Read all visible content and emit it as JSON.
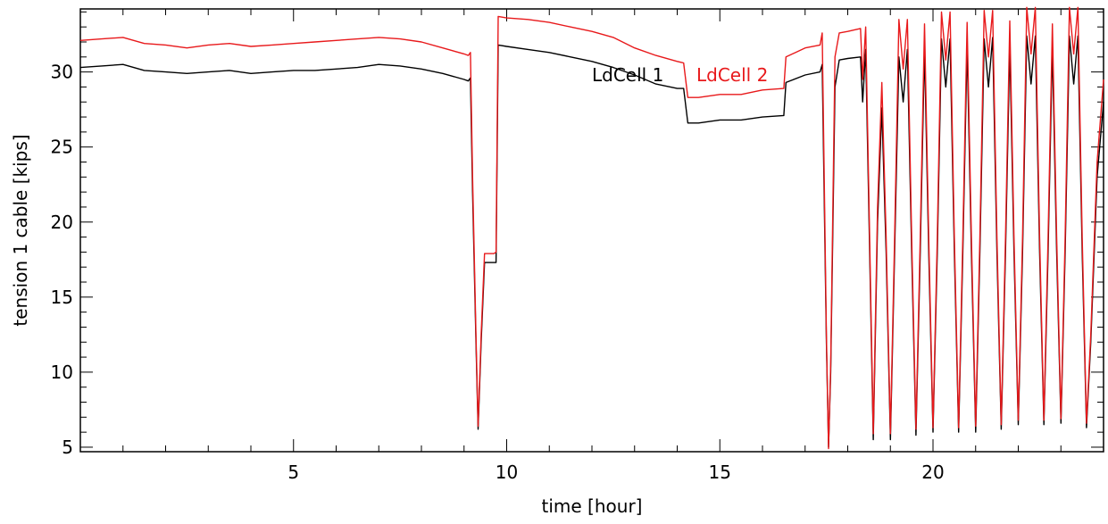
{
  "chart_data": {
    "type": "line",
    "title": "",
    "xlabel": "time [hour]",
    "ylabel": "tension 1 cable [kips]",
    "xlim": [
      0,
      24
    ],
    "ylim": [
      4.7,
      34.2
    ],
    "grid": false,
    "legend_position": "top-center",
    "x_ticks": [
      5,
      10,
      15,
      20
    ],
    "y_ticks": [
      5,
      10,
      15,
      20,
      25,
      30
    ],
    "series": [
      {
        "name": "LdCell 1",
        "color": "#000000",
        "points": [
          [
            0.0,
            30.3
          ],
          [
            0.5,
            30.4
          ],
          [
            1.0,
            30.5
          ],
          [
            1.5,
            30.1
          ],
          [
            2.0,
            30.0
          ],
          [
            2.5,
            29.9
          ],
          [
            3.0,
            30.0
          ],
          [
            3.5,
            30.1
          ],
          [
            4.0,
            29.9
          ],
          [
            4.5,
            30.0
          ],
          [
            5.0,
            30.1
          ],
          [
            5.5,
            30.1
          ],
          [
            6.0,
            30.2
          ],
          [
            6.5,
            30.3
          ],
          [
            7.0,
            30.5
          ],
          [
            7.5,
            30.4
          ],
          [
            8.0,
            30.2
          ],
          [
            8.5,
            29.9
          ],
          [
            9.0,
            29.5
          ],
          [
            9.1,
            29.4
          ],
          [
            9.15,
            29.6
          ],
          [
            9.2,
            22.0
          ],
          [
            9.28,
            12.0
          ],
          [
            9.33,
            6.2
          ],
          [
            9.4,
            12.0
          ],
          [
            9.48,
            17.3
          ],
          [
            9.7,
            17.3
          ],
          [
            9.75,
            17.3
          ],
          [
            9.8,
            31.8
          ],
          [
            10.0,
            31.7
          ],
          [
            10.5,
            31.5
          ],
          [
            11.0,
            31.3
          ],
          [
            11.5,
            31.0
          ],
          [
            12.0,
            30.7
          ],
          [
            12.5,
            30.3
          ],
          [
            13.0,
            29.8
          ],
          [
            13.5,
            29.2
          ],
          [
            14.0,
            28.9
          ],
          [
            14.15,
            28.9
          ],
          [
            14.25,
            26.6
          ],
          [
            14.5,
            26.6
          ],
          [
            15.0,
            26.8
          ],
          [
            15.5,
            26.8
          ],
          [
            16.0,
            27.0
          ],
          [
            16.5,
            27.1
          ],
          [
            16.55,
            29.3
          ],
          [
            17.0,
            29.8
          ],
          [
            17.35,
            30.0
          ],
          [
            17.4,
            30.5
          ],
          [
            17.5,
            12.0
          ],
          [
            17.55,
            5.0
          ],
          [
            17.6,
            10.0
          ],
          [
            17.7,
            29.0
          ],
          [
            17.8,
            30.8
          ],
          [
            18.0,
            30.9
          ],
          [
            18.3,
            31.0
          ],
          [
            18.35,
            28.0
          ],
          [
            18.42,
            31.5
          ],
          [
            18.5,
            20.0
          ],
          [
            18.6,
            5.5
          ],
          [
            18.7,
            20.0
          ],
          [
            18.8,
            27.6
          ],
          [
            18.9,
            18.0
          ],
          [
            19.0,
            5.5
          ],
          [
            19.1,
            18.0
          ],
          [
            19.2,
            31.0
          ],
          [
            19.3,
            28.0
          ],
          [
            19.4,
            31.5
          ],
          [
            19.5,
            18.0
          ],
          [
            19.6,
            5.8
          ],
          [
            19.7,
            18.0
          ],
          [
            19.8,
            31.6
          ],
          [
            19.9,
            18.0
          ],
          [
            20.0,
            6.0
          ],
          [
            20.1,
            18.0
          ],
          [
            20.2,
            32.2
          ],
          [
            20.3,
            29.0
          ],
          [
            20.4,
            32.2
          ],
          [
            20.5,
            18.0
          ],
          [
            20.6,
            6.0
          ],
          [
            20.7,
            18.0
          ],
          [
            20.8,
            31.8
          ],
          [
            20.9,
            18.0
          ],
          [
            21.0,
            6.0
          ],
          [
            21.1,
            18.0
          ],
          [
            21.2,
            32.2
          ],
          [
            21.3,
            29.0
          ],
          [
            21.4,
            32.3
          ],
          [
            21.5,
            18.0
          ],
          [
            21.6,
            6.2
          ],
          [
            21.7,
            18.0
          ],
          [
            21.8,
            31.8
          ],
          [
            21.9,
            18.0
          ],
          [
            22.0,
            6.5
          ],
          [
            22.1,
            18.0
          ],
          [
            22.2,
            32.4
          ],
          [
            22.3,
            29.2
          ],
          [
            22.4,
            32.4
          ],
          [
            22.5,
            18.0
          ],
          [
            22.6,
            6.5
          ],
          [
            22.7,
            18.0
          ],
          [
            22.8,
            31.7
          ],
          [
            22.9,
            18.0
          ],
          [
            23.0,
            6.6
          ],
          [
            23.1,
            18.0
          ],
          [
            23.2,
            32.4
          ],
          [
            23.3,
            29.2
          ],
          [
            23.4,
            32.4
          ],
          [
            23.5,
            18.0
          ],
          [
            23.6,
            6.3
          ],
          [
            23.7,
            12.0
          ],
          [
            23.85,
            23.0
          ],
          [
            24.0,
            28.0
          ]
        ]
      },
      {
        "name": "LdCell 2",
        "color": "#e8191b",
        "points": [
          [
            0.0,
            32.1
          ],
          [
            0.5,
            32.2
          ],
          [
            1.0,
            32.3
          ],
          [
            1.5,
            31.9
          ],
          [
            2.0,
            31.8
          ],
          [
            2.5,
            31.6
          ],
          [
            3.0,
            31.8
          ],
          [
            3.5,
            31.9
          ],
          [
            4.0,
            31.7
          ],
          [
            4.5,
            31.8
          ],
          [
            5.0,
            31.9
          ],
          [
            5.5,
            32.0
          ],
          [
            6.0,
            32.1
          ],
          [
            6.5,
            32.2
          ],
          [
            7.0,
            32.3
          ],
          [
            7.5,
            32.2
          ],
          [
            8.0,
            32.0
          ],
          [
            8.5,
            31.6
          ],
          [
            9.0,
            31.2
          ],
          [
            9.1,
            31.1
          ],
          [
            9.15,
            31.3
          ],
          [
            9.2,
            23.0
          ],
          [
            9.28,
            12.5
          ],
          [
            9.33,
            6.4
          ],
          [
            9.4,
            12.5
          ],
          [
            9.48,
            17.9
          ],
          [
            9.7,
            17.9
          ],
          [
            9.75,
            18.0
          ],
          [
            9.8,
            33.7
          ],
          [
            10.0,
            33.6
          ],
          [
            10.5,
            33.5
          ],
          [
            11.0,
            33.3
          ],
          [
            11.5,
            33.0
          ],
          [
            12.0,
            32.7
          ],
          [
            12.5,
            32.3
          ],
          [
            13.0,
            31.6
          ],
          [
            13.5,
            31.1
          ],
          [
            14.0,
            30.7
          ],
          [
            14.15,
            30.6
          ],
          [
            14.25,
            28.3
          ],
          [
            14.5,
            28.3
          ],
          [
            15.0,
            28.5
          ],
          [
            15.5,
            28.5
          ],
          [
            16.0,
            28.8
          ],
          [
            16.5,
            28.9
          ],
          [
            16.55,
            31.0
          ],
          [
            17.0,
            31.6
          ],
          [
            17.35,
            31.8
          ],
          [
            17.4,
            32.6
          ],
          [
            17.5,
            12.5
          ],
          [
            17.55,
            4.9
          ],
          [
            17.6,
            10.5
          ],
          [
            17.7,
            31.0
          ],
          [
            17.8,
            32.6
          ],
          [
            18.0,
            32.7
          ],
          [
            18.3,
            32.9
          ],
          [
            18.35,
            29.5
          ],
          [
            18.42,
            33.0
          ],
          [
            18.5,
            21.0
          ],
          [
            18.6,
            5.9
          ],
          [
            18.7,
            21.0
          ],
          [
            18.8,
            29.3
          ],
          [
            18.9,
            19.0
          ],
          [
            19.0,
            5.9
          ],
          [
            19.1,
            19.0
          ],
          [
            19.2,
            33.5
          ],
          [
            19.3,
            30.2
          ],
          [
            19.4,
            33.5
          ],
          [
            19.5,
            19.0
          ],
          [
            19.6,
            6.2
          ],
          [
            19.7,
            19.0
          ],
          [
            19.8,
            33.2
          ],
          [
            19.9,
            19.0
          ],
          [
            20.0,
            6.3
          ],
          [
            20.1,
            19.0
          ],
          [
            20.2,
            34.0
          ],
          [
            20.3,
            30.8
          ],
          [
            20.4,
            34.0
          ],
          [
            20.5,
            19.0
          ],
          [
            20.6,
            6.3
          ],
          [
            20.7,
            19.0
          ],
          [
            20.8,
            33.3
          ],
          [
            20.9,
            19.0
          ],
          [
            21.0,
            6.4
          ],
          [
            21.1,
            19.0
          ],
          [
            21.2,
            34.1
          ],
          [
            21.3,
            31.0
          ],
          [
            21.4,
            34.1
          ],
          [
            21.5,
            19.0
          ],
          [
            21.6,
            6.5
          ],
          [
            21.7,
            19.0
          ],
          [
            21.8,
            33.4
          ],
          [
            21.9,
            19.0
          ],
          [
            22.0,
            6.8
          ],
          [
            22.1,
            19.0
          ],
          [
            22.2,
            34.3
          ],
          [
            22.3,
            31.2
          ],
          [
            22.4,
            34.3
          ],
          [
            22.5,
            19.0
          ],
          [
            22.6,
            6.8
          ],
          [
            22.7,
            19.0
          ],
          [
            22.8,
            33.2
          ],
          [
            22.9,
            19.0
          ],
          [
            23.0,
            6.9
          ],
          [
            23.1,
            19.0
          ],
          [
            23.2,
            34.3
          ],
          [
            23.3,
            31.2
          ],
          [
            23.4,
            34.3
          ],
          [
            23.5,
            19.0
          ],
          [
            23.6,
            6.6
          ],
          [
            23.7,
            12.5
          ],
          [
            23.85,
            24.0
          ],
          [
            24.0,
            29.5
          ]
        ]
      }
    ]
  }
}
